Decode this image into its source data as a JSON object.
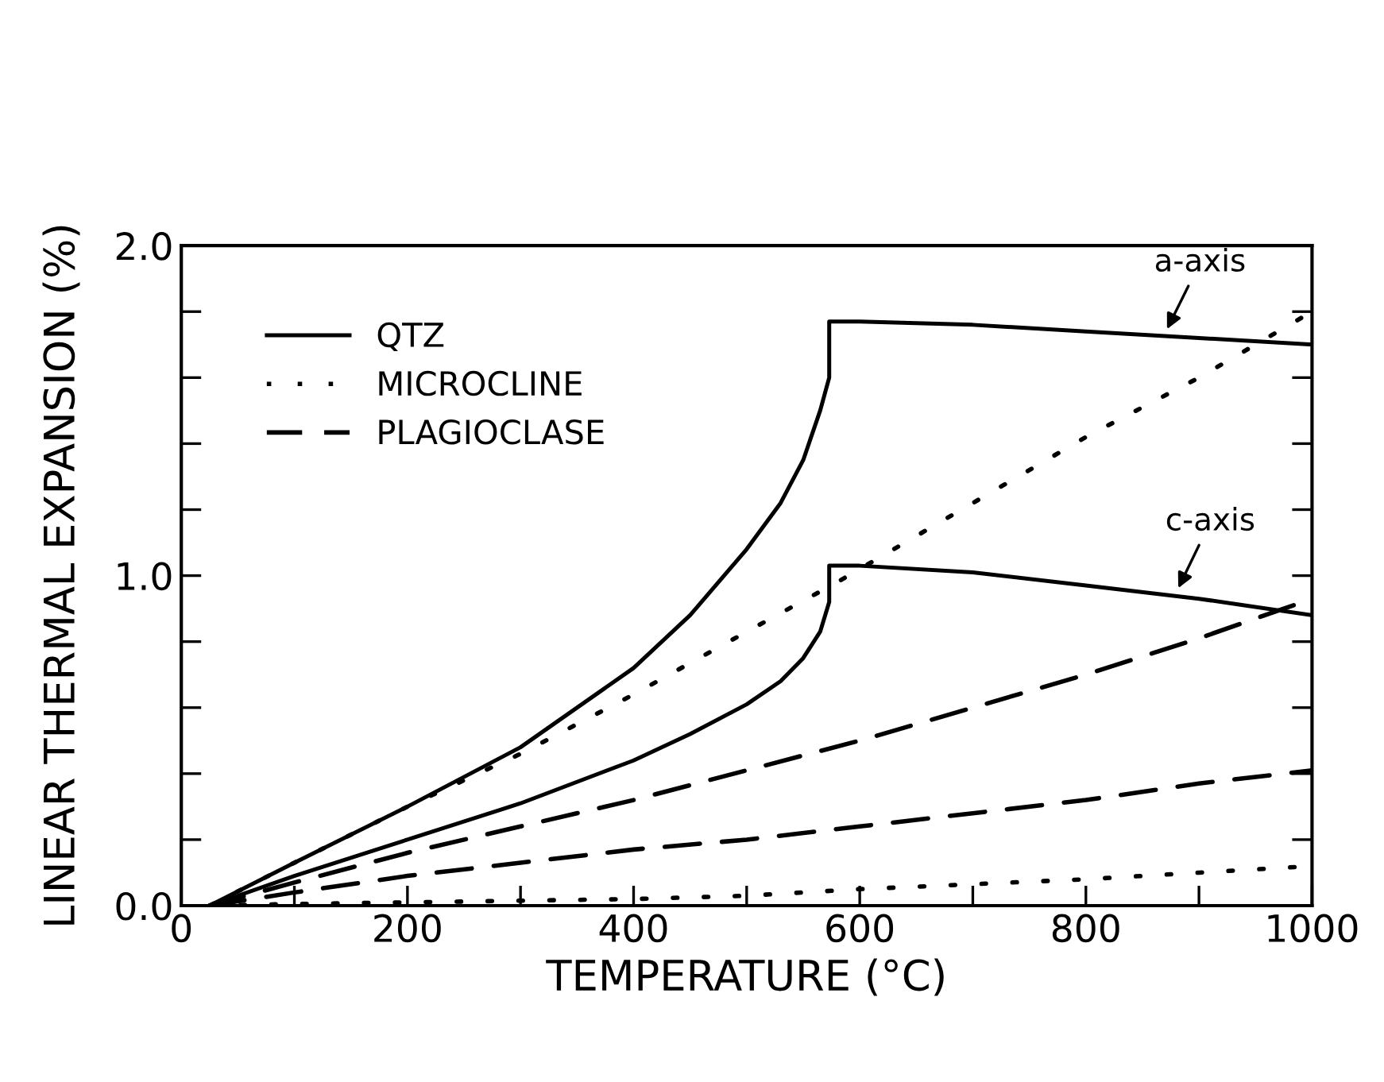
{
  "chart_data": {
    "type": "line",
    "xlabel": "TEMPERATURE (°C)",
    "ylabel": "LINEAR THERMAL EXPANSION (%)",
    "xlim": [
      0,
      1000
    ],
    "ylim": [
      0,
      2.0
    ],
    "xticks": [
      0,
      {
        "value": 100,
        "label": null
      },
      200,
      {
        "value": 300,
        "label": null
      },
      400,
      {
        "value": 500,
        "label": null
      },
      600,
      {
        "value": 700,
        "label": null
      },
      800,
      {
        "value": 900,
        "label": null
      },
      1000
    ],
    "yticks": [
      {
        "value": 0,
        "label": "0.0"
      },
      {
        "value": 0.2,
        "label": null
      },
      {
        "value": 0.4,
        "label": null
      },
      {
        "value": 0.6,
        "label": null
      },
      {
        "value": 0.8,
        "label": null
      },
      {
        "value": 1.0,
        "label": "1.0"
      },
      {
        "value": 1.2,
        "label": null
      },
      {
        "value": 1.4,
        "label": null
      },
      {
        "value": 1.6,
        "label": null
      },
      {
        "value": 1.8,
        "label": null
      },
      {
        "value": 2.0,
        "label": "2.0"
      }
    ],
    "grid": false,
    "legend": "top left",
    "marker": "none",
    "series": [
      {
        "name": "QTZ",
        "color": "#000000",
        "line_style": "solid",
        "x": [
          25,
          100,
          200,
          300,
          400,
          450,
          500,
          530,
          550,
          565,
          573,
          573,
          600,
          700,
          800,
          900,
          1000
        ],
        "values": [
          0,
          0.13,
          0.3,
          0.48,
          0.72,
          0.88,
          1.08,
          1.22,
          1.35,
          1.5,
          1.6,
          1.77,
          1.77,
          1.76,
          1.74,
          1.72,
          1.7
        ]
      },
      {
        "color": "#000000",
        "line_style": "solid",
        "x": [
          25,
          100,
          200,
          300,
          400,
          450,
          500,
          530,
          550,
          565,
          573,
          573,
          600,
          700,
          800,
          900,
          1000
        ],
        "values": [
          0,
          0.09,
          0.2,
          0.31,
          0.44,
          0.52,
          0.61,
          0.68,
          0.75,
          0.83,
          0.92,
          1.03,
          1.03,
          1.01,
          0.97,
          0.93,
          0.88
        ]
      },
      {
        "name": "MICROCLINE",
        "color": "#000000",
        "line_style": "dotted",
        "x": [
          25,
          100,
          200,
          300,
          400,
          500,
          580,
          700,
          800,
          900,
          1000
        ],
        "values": [
          0,
          0.13,
          0.3,
          0.46,
          0.64,
          0.83,
          0.98,
          1.22,
          1.42,
          1.6,
          1.8
        ]
      },
      {
        "color": "#000000",
        "line_style": "dotted",
        "x": [
          25,
          100,
          200,
          300,
          400,
          500,
          600,
          700,
          800,
          900,
          1000
        ],
        "values": [
          0,
          0.005,
          0.01,
          0.015,
          0.02,
          0.03,
          0.05,
          0.065,
          0.08,
          0.1,
          0.12
        ]
      },
      {
        "name": "PLAGIOCLASE",
        "color": "#000000",
        "line_style": "dashed",
        "x": [
          25,
          100,
          200,
          300,
          400,
          500,
          600,
          700,
          800,
          900,
          1000
        ],
        "values": [
          0,
          0.07,
          0.16,
          0.24,
          0.32,
          0.41,
          0.5,
          0.6,
          0.7,
          0.81,
          0.93
        ]
      },
      {
        "color": "#000000",
        "line_style": "dashed",
        "x": [
          25,
          100,
          200,
          300,
          400,
          500,
          600,
          700,
          800,
          900,
          1000
        ],
        "values": [
          0,
          0.04,
          0.09,
          0.13,
          0.17,
          0.2,
          0.24,
          0.28,
          0.32,
          0.37,
          0.41
        ]
      }
    ],
    "annotations": [
      {
        "text": "a-axis",
        "x": 870,
        "y": 1.735
      },
      {
        "text": "c-axis",
        "x": 880,
        "y": 0.95
      }
    ]
  }
}
